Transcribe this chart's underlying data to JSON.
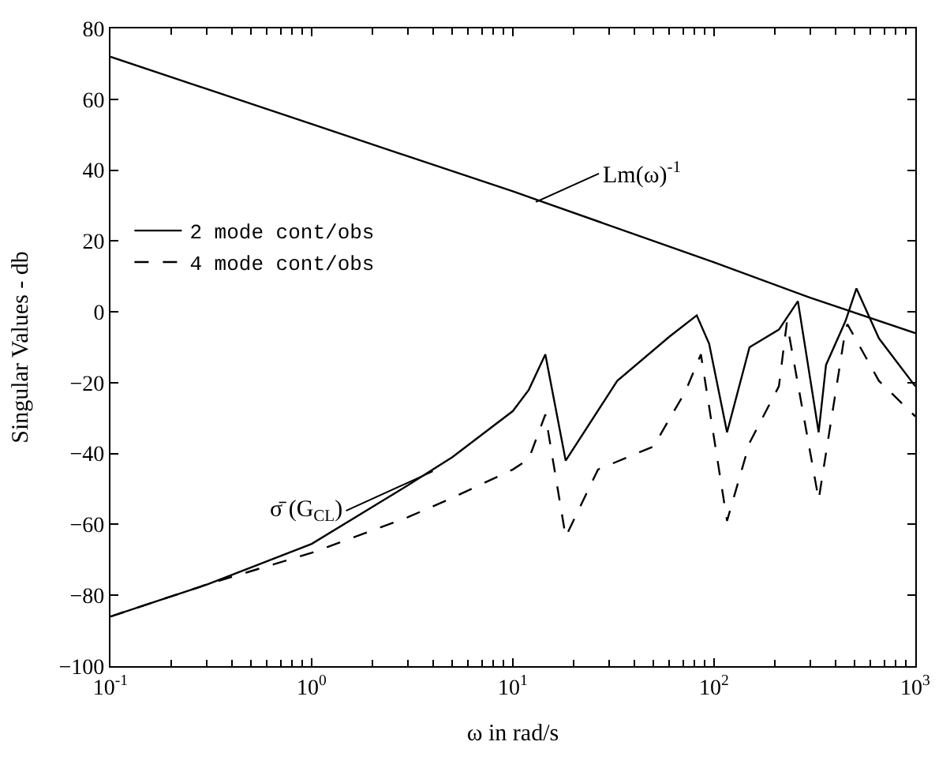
{
  "chart_data": {
    "type": "line",
    "xlabel": "ω in rad/s",
    "ylabel": "Singular Values - db",
    "log": "x",
    "xlim": [
      0.1,
      1000
    ],
    "ylim": [
      -100,
      80
    ],
    "xticks": [
      {
        "value": 0.1,
        "label": "10$^{-1}$"
      },
      {
        "value": 1,
        "label": "10$^{0}$"
      },
      {
        "value": 10,
        "label": "10$^{1}$"
      },
      {
        "value": 100,
        "label": "10$^{2}$"
      },
      {
        "value": 1000,
        "label": "10$^{3}$"
      }
    ],
    "yticks": [
      -100,
      -80,
      -60,
      -40,
      -20,
      0,
      20,
      40,
      60,
      80
    ],
    "legend": "top left",
    "series": [
      {
        "color": "#000000",
        "line_style": "solid",
        "x": [
          0.1,
          1,
          10,
          100,
          300,
          1000
        ],
        "values": [
          72,
          53,
          34,
          14,
          4,
          -6
        ]
      },
      {
        "name": "2 mode cont/obs",
        "color": "#000000",
        "line_style": "solid",
        "x": [
          0.1,
          0.3,
          1,
          3,
          5,
          10,
          12,
          14.5,
          18.3,
          33,
          60,
          82,
          94.5,
          116,
          150,
          210,
          261,
          331,
          360,
          450,
          510,
          660,
          1000
        ],
        "values": [
          -86,
          -77,
          -65.5,
          -49,
          -41,
          -28,
          -22,
          -12,
          -42,
          -19.5,
          -7,
          -1,
          -9,
          -34,
          -10,
          -5,
          3,
          -34,
          -15,
          -2.6,
          6.6,
          -7.5,
          -21
        ]
      },
      {
        "name": "4 mode cont/obs",
        "color": "#000000",
        "line_style": "dashed",
        "x": [
          0.1,
          0.3,
          1,
          3,
          5,
          10,
          12,
          14.5,
          18.3,
          26.5,
          50,
          72,
          86,
          116,
          150,
          210,
          230,
          331,
          450,
          460,
          660,
          1000
        ],
        "values": [
          -86,
          -77,
          -68,
          -58,
          -52.5,
          -44.5,
          -41.5,
          -29,
          -63.5,
          -44.5,
          -38,
          -22.5,
          -12,
          -59,
          -37,
          -21,
          -3,
          -53,
          -5,
          -3.5,
          -19.5,
          -29.5
        ]
      }
    ],
    "annotations": [
      {
        "text": "Lm(ω)$^{-1}$",
        "x": 13,
        "y": 31
      },
      {
        "text": "σ̄ (G$_{CL}$)",
        "x": 4,
        "y": -45
      }
    ]
  }
}
